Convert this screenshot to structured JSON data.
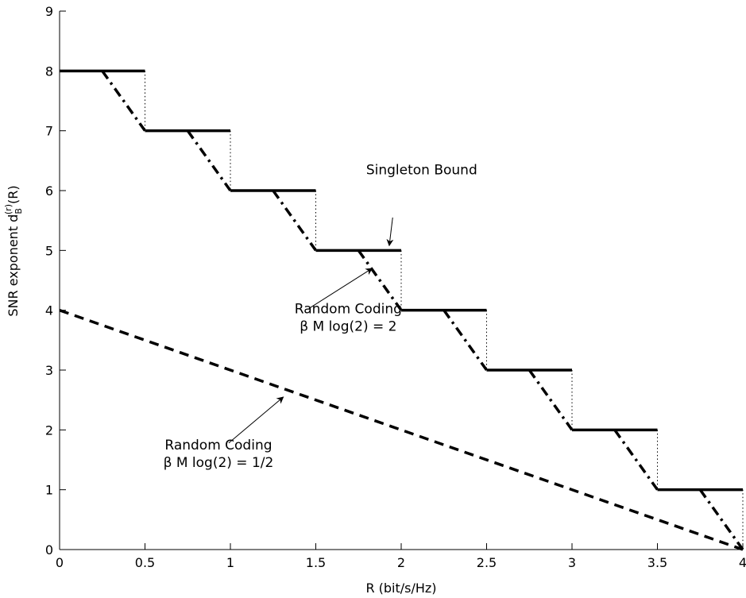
{
  "chart_data": {
    "type": "line",
    "title": "",
    "xlabel": "R (bit/s/Hz)",
    "ylabel": {
      "prefix": "SNR exponent d",
      "sub": "B",
      "sup": "(r)",
      "suffix": "(R)"
    },
    "xlim": [
      0,
      4
    ],
    "ylim": [
      0,
      9
    ],
    "xticks": [
      {
        "value": 0,
        "label": "0"
      },
      {
        "value": 0.5,
        "label": "0.5"
      },
      {
        "value": 1,
        "label": "1"
      },
      {
        "value": 1.5,
        "label": "1.5"
      },
      {
        "value": 2,
        "label": "2"
      },
      {
        "value": 2.5,
        "label": "2.5"
      },
      {
        "value": 3,
        "label": "3"
      },
      {
        "value": 3.5,
        "label": "3.5"
      },
      {
        "value": 4,
        "label": "4"
      }
    ],
    "yticks": [
      {
        "value": 0,
        "label": "0"
      },
      {
        "value": 1,
        "label": "1"
      },
      {
        "value": 2,
        "label": "2"
      },
      {
        "value": 3,
        "label": "3"
      },
      {
        "value": 4,
        "label": "4"
      },
      {
        "value": 5,
        "label": "5"
      },
      {
        "value": 6,
        "label": "6"
      },
      {
        "value": 7,
        "label": "7"
      },
      {
        "value": 8,
        "label": "8"
      },
      {
        "value": 9,
        "label": "9"
      }
    ],
    "grid": false,
    "series": [
      {
        "style": "solid",
        "color": "#000000",
        "segments": [
          {
            "x": [
              0,
              0.5
            ],
            "y": [
              8,
              8
            ]
          },
          {
            "x": [
              0.5,
              1
            ],
            "y": [
              7,
              7
            ]
          },
          {
            "x": [
              1,
              1.5
            ],
            "y": [
              6,
              6
            ]
          },
          {
            "x": [
              1.5,
              2
            ],
            "y": [
              5,
              5
            ]
          },
          {
            "x": [
              2,
              2.5
            ],
            "y": [
              4,
              4
            ]
          },
          {
            "x": [
              2.5,
              3
            ],
            "y": [
              3,
              3
            ]
          },
          {
            "x": [
              3,
              3.5
            ],
            "y": [
              2,
              2
            ]
          },
          {
            "x": [
              3.5,
              4
            ],
            "y": [
              1,
              1
            ]
          }
        ]
      },
      {
        "style": "dotted",
        "color": "#000000",
        "segments": [
          {
            "x": [
              0.5,
              0.5
            ],
            "y": [
              8,
              7
            ]
          },
          {
            "x": [
              1,
              1
            ],
            "y": [
              7,
              6
            ]
          },
          {
            "x": [
              1.5,
              1.5
            ],
            "y": [
              6,
              5
            ]
          },
          {
            "x": [
              2,
              2
            ],
            "y": [
              5,
              4
            ]
          },
          {
            "x": [
              2.5,
              2.5
            ],
            "y": [
              4,
              3
            ]
          },
          {
            "x": [
              3,
              3
            ],
            "y": [
              3,
              2
            ]
          },
          {
            "x": [
              3.5,
              3.5
            ],
            "y": [
              2,
              1
            ]
          },
          {
            "x": [
              4,
              4
            ],
            "y": [
              1,
              0
            ]
          }
        ]
      },
      {
        "style": "dashdot",
        "color": "#000000",
        "segments": [
          {
            "x": [
              0.25,
              0.5
            ],
            "y": [
              8,
              7
            ]
          },
          {
            "x": [
              0.75,
              1
            ],
            "y": [
              7,
              6
            ]
          },
          {
            "x": [
              1.25,
              1.5
            ],
            "y": [
              6,
              5
            ]
          },
          {
            "x": [
              1.75,
              2
            ],
            "y": [
              5,
              4
            ]
          },
          {
            "x": [
              2.25,
              2.5
            ],
            "y": [
              4,
              3
            ]
          },
          {
            "x": [
              2.75,
              3
            ],
            "y": [
              3,
              2
            ]
          },
          {
            "x": [
              3.25,
              3.5
            ],
            "y": [
              2,
              1
            ]
          },
          {
            "x": [
              3.75,
              4
            ],
            "y": [
              1,
              0
            ]
          }
        ]
      },
      {
        "style": "dashed",
        "color": "#000000",
        "segments": [
          {
            "x": [
              0,
              4
            ],
            "y": [
              4,
              0
            ]
          }
        ]
      }
    ],
    "annotations": [
      {
        "lines": [
          "Singleton Bound"
        ],
        "text_at": [
          2.12,
          6.27
        ],
        "align": "middle",
        "arrow_from": [
          1.95,
          5.55
        ],
        "arrow_to": [
          1.93,
          5.08
        ]
      },
      {
        "lines": [
          "Random Coding",
          "β M log(2) = 2"
        ],
        "text_at": [
          1.69,
          3.95
        ],
        "align": "middle",
        "arrow_from": [
          1.46,
          4.03
        ],
        "arrow_to": [
          1.83,
          4.7
        ]
      },
      {
        "lines": [
          "Random Coding",
          "β M log(2) = 1/2"
        ],
        "text_at": [
          0.93,
          1.67
        ],
        "align": "middle",
        "arrow_from": [
          0.99,
          1.78
        ],
        "arrow_to": [
          1.31,
          2.55
        ]
      }
    ]
  }
}
